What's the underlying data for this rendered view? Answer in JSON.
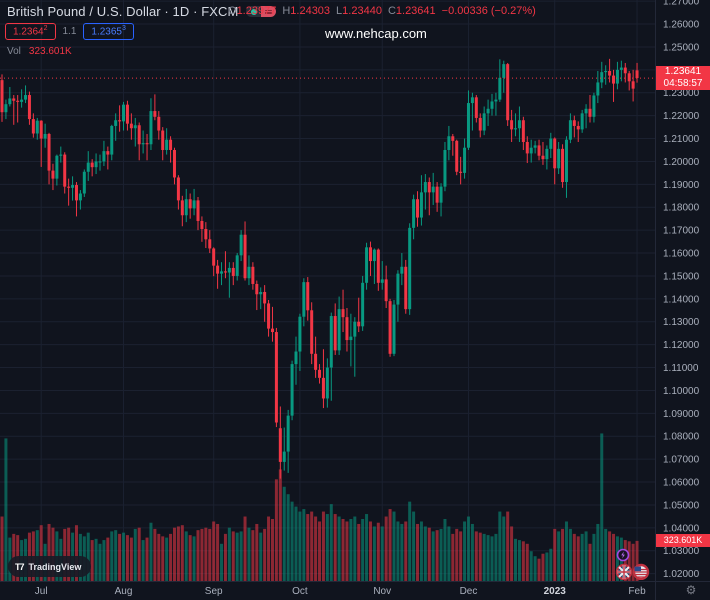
{
  "colors": {
    "background": "#10141e",
    "up": "#089981",
    "down": "#f23645",
    "grid": "#1b2130",
    "axis_text": "#aab0bd",
    "muted_text": "#868b98",
    "accent_blue": "#2962ff",
    "label_red": "#f23645",
    "purple": "#a34ae0"
  },
  "header": {
    "symbol_title": "British Pound / U.S. Dollar · 1D · FXCM",
    "market_status_icon": "market-open-dot",
    "ohlc": {
      "o_label": "O",
      "o": "1.23977",
      "h_label": "H",
      "h": "1.24303",
      "l_label": "L",
      "l": "1.23440",
      "c_label": "C",
      "c": "1.23641",
      "change": "−0.00336 (−0.27%)"
    },
    "sell_price": "1.2364",
    "sell_sup": "2",
    "spread": "1.1",
    "buy_price": "1.2365",
    "buy_sup": "3",
    "vol_label": "Vol",
    "vol_value": "323.601K",
    "watermark": "www.nehcap.com"
  },
  "price_scale": {
    "labels": [
      "1.27000",
      "1.26000",
      "1.25000",
      "1.24000",
      "1.23000",
      "1.22000",
      "1.21000",
      "1.20000",
      "1.19000",
      "1.18000",
      "1.17000",
      "1.16000",
      "1.15000",
      "1.14000",
      "1.13000",
      "1.12000",
      "1.11000",
      "1.10000",
      "1.09000",
      "1.08000",
      "1.07000",
      "1.06000",
      "1.05000",
      "1.04000",
      "1.03000",
      "1.02000"
    ],
    "last_price_label": "1.23641",
    "countdown": "04:58:57",
    "volume_label": "323.601K"
  },
  "footer": {
    "logo_text": "TradingView",
    "gear_icon": "settings-gear"
  },
  "chart_data": {
    "type": "candlestick",
    "title": "British Pound / U.S. Dollar",
    "interval": "1D",
    "exchange": "FXCM",
    "price_axis": {
      "min": 1.02,
      "max": 1.27,
      "step": 0.01
    },
    "x_ticks": [
      {
        "label": "Jul",
        "i": 10
      },
      {
        "label": "Aug",
        "i": 31
      },
      {
        "label": "Sep",
        "i": 54
      },
      {
        "label": "Oct",
        "i": 76
      },
      {
        "label": "Nov",
        "i": 97
      },
      {
        "label": "Dec",
        "i": 119
      },
      {
        "label": "2023",
        "i": 141
      },
      {
        "label": "Feb",
        "i": 162
      }
    ],
    "last": {
      "open": 1.23977,
      "high": 1.24303,
      "low": 1.2344,
      "close": 1.23641,
      "change": -0.00336,
      "change_pct": -0.27,
      "volume_k": 323.601
    },
    "volume_axis": {
      "max_k": 1250
    },
    "candles": [
      [
        1.2355,
        1.238,
        1.2173,
        1.2215,
        520
      ],
      [
        1.2215,
        1.227,
        1.2185,
        1.225,
        1150
      ],
      [
        1.225,
        1.2325,
        1.224,
        1.2275,
        350
      ],
      [
        1.2275,
        1.229,
        1.216,
        1.2265,
        380
      ],
      [
        1.2265,
        1.229,
        1.217,
        1.226,
        370
      ],
      [
        1.226,
        1.2315,
        1.2235,
        1.227,
        330
      ],
      [
        1.227,
        1.2332,
        1.2255,
        1.229,
        340
      ],
      [
        1.229,
        1.2305,
        1.216,
        1.2185,
        390
      ],
      [
        1.2185,
        1.221,
        1.2104,
        1.2122,
        400
      ],
      [
        1.2122,
        1.219,
        1.2095,
        1.2178,
        410
      ],
      [
        1.2178,
        1.218,
        1.1976,
        1.21,
        450
      ],
      [
        1.21,
        1.2165,
        1.206,
        1.212,
        300
      ],
      [
        1.212,
        1.2125,
        1.19,
        1.196,
        460
      ],
      [
        1.196,
        1.199,
        1.1875,
        1.1925,
        430
      ],
      [
        1.1925,
        1.203,
        1.1895,
        1.2025,
        400
      ],
      [
        1.2025,
        1.2065,
        1.1995,
        1.203,
        340
      ],
      [
        1.203,
        1.204,
        1.186,
        1.189,
        420
      ],
      [
        1.189,
        1.1925,
        1.1807,
        1.1885,
        430
      ],
      [
        1.1885,
        1.1935,
        1.1829,
        1.1897,
        390
      ],
      [
        1.1897,
        1.191,
        1.176,
        1.183,
        450
      ],
      [
        1.183,
        1.1875,
        1.179,
        1.186,
        380
      ],
      [
        1.186,
        1.1965,
        1.1845,
        1.1955,
        360
      ],
      [
        1.1955,
        1.2045,
        1.1915,
        1.1995,
        390
      ],
      [
        1.1995,
        1.201,
        1.1935,
        1.1975,
        330
      ],
      [
        1.1975,
        1.2035,
        1.1945,
        1.2,
        340
      ],
      [
        1.2,
        1.203,
        1.196,
        1.2,
        300
      ],
      [
        1.2,
        1.209,
        1.198,
        1.2045,
        330
      ],
      [
        1.2045,
        1.2065,
        1.1965,
        1.203,
        350
      ],
      [
        1.203,
        1.216,
        1.2005,
        1.2155,
        400
      ],
      [
        1.2155,
        1.221,
        1.209,
        1.218,
        410
      ],
      [
        1.218,
        1.2245,
        1.213,
        1.2175,
        380
      ],
      [
        1.2175,
        1.226,
        1.2135,
        1.2248,
        390
      ],
      [
        1.2248,
        1.2265,
        1.2135,
        1.2165,
        370
      ],
      [
        1.2165,
        1.221,
        1.2095,
        1.2145,
        350
      ],
      [
        1.2145,
        1.219,
        1.2065,
        1.2158,
        420
      ],
      [
        1.2158,
        1.217,
        1.2005,
        1.2075,
        430
      ],
      [
        1.2075,
        1.2135,
        1.2035,
        1.208,
        330
      ],
      [
        1.208,
        1.212,
        1.2005,
        1.2075,
        350
      ],
      [
        1.2075,
        1.2276,
        1.205,
        1.222,
        470
      ],
      [
        1.222,
        1.2293,
        1.218,
        1.2195,
        420
      ],
      [
        1.2195,
        1.222,
        1.2095,
        1.2135,
        380
      ],
      [
        1.2135,
        1.215,
        1.2005,
        1.205,
        360
      ],
      [
        1.205,
        1.2145,
        1.203,
        1.2095,
        350
      ],
      [
        1.2095,
        1.211,
        1.1995,
        1.205,
        380
      ],
      [
        1.205,
        1.206,
        1.19,
        1.193,
        430
      ],
      [
        1.193,
        1.194,
        1.179,
        1.183,
        440
      ],
      [
        1.183,
        1.185,
        1.1717,
        1.1765,
        450
      ],
      [
        1.1765,
        1.188,
        1.1735,
        1.1835,
        400
      ],
      [
        1.1835,
        1.186,
        1.175,
        1.1795,
        370
      ],
      [
        1.1795,
        1.188,
        1.1765,
        1.183,
        360
      ],
      [
        1.183,
        1.1845,
        1.17,
        1.174,
        410
      ],
      [
        1.174,
        1.176,
        1.1649,
        1.1705,
        420
      ],
      [
        1.1705,
        1.1735,
        1.1622,
        1.166,
        430
      ],
      [
        1.166,
        1.17,
        1.16,
        1.162,
        420
      ],
      [
        1.162,
        1.1625,
        1.1499,
        1.1545,
        480
      ],
      [
        1.1545,
        1.157,
        1.1444,
        1.151,
        460
      ],
      [
        1.151,
        1.156,
        1.146,
        1.152,
        300
      ],
      [
        1.152,
        1.1608,
        1.149,
        1.1515,
        380
      ],
      [
        1.1515,
        1.156,
        1.1405,
        1.1535,
        430
      ],
      [
        1.1535,
        1.156,
        1.146,
        1.15,
        400
      ],
      [
        1.15,
        1.16,
        1.148,
        1.159,
        390
      ],
      [
        1.159,
        1.17,
        1.1565,
        1.168,
        400
      ],
      [
        1.168,
        1.1738,
        1.148,
        1.149,
        520
      ],
      [
        1.149,
        1.159,
        1.146,
        1.154,
        430
      ],
      [
        1.154,
        1.156,
        1.144,
        1.1465,
        410
      ],
      [
        1.1465,
        1.148,
        1.1351,
        1.142,
        460
      ],
      [
        1.142,
        1.145,
        1.1355,
        1.143,
        390
      ],
      [
        1.143,
        1.146,
        1.13,
        1.138,
        420
      ],
      [
        1.138,
        1.1395,
        1.1235,
        1.127,
        520
      ],
      [
        1.127,
        1.1365,
        1.1213,
        1.1255,
        500
      ],
      [
        1.1255,
        1.1273,
        1.084,
        1.086,
        820
      ],
      [
        1.0835,
        1.093,
        1.0615,
        1.0688,
        900
      ],
      [
        1.0688,
        1.0838,
        1.065,
        1.0733,
        760
      ],
      [
        1.0733,
        1.0915,
        1.064,
        1.089,
        700
      ],
      [
        1.089,
        1.113,
        1.087,
        1.1115,
        640
      ],
      [
        1.1115,
        1.1235,
        1.1025,
        1.117,
        600
      ],
      [
        1.117,
        1.1335,
        1.1085,
        1.1322,
        560
      ],
      [
        1.1322,
        1.149,
        1.128,
        1.1473,
        580
      ],
      [
        1.1473,
        1.1495,
        1.1305,
        1.135,
        540
      ],
      [
        1.135,
        1.1385,
        1.1115,
        1.116,
        560
      ],
      [
        1.116,
        1.1235,
        1.1055,
        1.109,
        520
      ],
      [
        1.109,
        1.1115,
        1.103,
        1.1055,
        480
      ],
      [
        1.1055,
        1.118,
        1.0923,
        1.0965,
        560
      ],
      [
        1.0965,
        1.114,
        1.0925,
        1.11,
        540
      ],
      [
        1.11,
        1.134,
        1.0955,
        1.1325,
        620
      ],
      [
        1.1325,
        1.138,
        1.1155,
        1.1175,
        540
      ],
      [
        1.1175,
        1.141,
        1.1155,
        1.1355,
        520
      ],
      [
        1.1355,
        1.144,
        1.1255,
        1.132,
        500
      ],
      [
        1.132,
        1.136,
        1.117,
        1.122,
        480
      ],
      [
        1.122,
        1.1335,
        1.1105,
        1.1235,
        500
      ],
      [
        1.1235,
        1.132,
        1.106,
        1.13,
        520
      ],
      [
        1.13,
        1.1405,
        1.1255,
        1.128,
        460
      ],
      [
        1.128,
        1.15,
        1.126,
        1.147,
        500
      ],
      [
        1.147,
        1.1645,
        1.144,
        1.1625,
        540
      ],
      [
        1.1625,
        1.165,
        1.15,
        1.1565,
        480
      ],
      [
        1.1565,
        1.162,
        1.1465,
        1.1615,
        440
      ],
      [
        1.1615,
        1.162,
        1.1435,
        1.147,
        470
      ],
      [
        1.147,
        1.1565,
        1.144,
        1.1485,
        440
      ],
      [
        1.1485,
        1.1545,
        1.136,
        1.139,
        520
      ],
      [
        1.139,
        1.14,
        1.1147,
        1.116,
        580
      ],
      [
        1.116,
        1.1395,
        1.115,
        1.1375,
        560
      ],
      [
        1.1375,
        1.1525,
        1.13,
        1.151,
        480
      ],
      [
        1.151,
        1.16,
        1.146,
        1.154,
        460
      ],
      [
        1.154,
        1.157,
        1.1335,
        1.1355,
        480
      ],
      [
        1.1355,
        1.173,
        1.133,
        1.171,
        640
      ],
      [
        1.171,
        1.1855,
        1.166,
        1.1835,
        560
      ],
      [
        1.1835,
        1.187,
        1.1715,
        1.1755,
        460
      ],
      [
        1.1755,
        1.194,
        1.172,
        1.1865,
        480
      ],
      [
        1.1865,
        1.1945,
        1.179,
        1.191,
        440
      ],
      [
        1.191,
        1.193,
        1.1765,
        1.1865,
        430
      ],
      [
        1.1865,
        1.195,
        1.181,
        1.189,
        400
      ],
      [
        1.189,
        1.191,
        1.178,
        1.182,
        410
      ],
      [
        1.182,
        1.1905,
        1.176,
        1.189,
        420
      ],
      [
        1.189,
        1.2085,
        1.187,
        1.205,
        500
      ],
      [
        1.205,
        1.2155,
        1.2005,
        1.211,
        440
      ],
      [
        1.211,
        1.212,
        1.2025,
        1.209,
        380
      ],
      [
        1.209,
        1.2095,
        1.194,
        1.1955,
        420
      ],
      [
        1.1955,
        1.202,
        1.19,
        1.195,
        400
      ],
      [
        1.195,
        1.21,
        1.1925,
        1.206,
        480
      ],
      [
        1.206,
        1.231,
        1.205,
        1.2255,
        520
      ],
      [
        1.2255,
        1.23,
        1.2135,
        1.228,
        460
      ],
      [
        1.228,
        1.229,
        1.217,
        1.219,
        400
      ],
      [
        1.219,
        1.221,
        1.2105,
        1.2135,
        390
      ],
      [
        1.2135,
        1.224,
        1.2115,
        1.221,
        380
      ],
      [
        1.221,
        1.227,
        1.2155,
        1.223,
        370
      ],
      [
        1.223,
        1.2295,
        1.22,
        1.2262,
        360
      ],
      [
        1.2262,
        1.23,
        1.22,
        1.227,
        380
      ],
      [
        1.227,
        1.2446,
        1.226,
        1.2365,
        560
      ],
      [
        1.2365,
        1.244,
        1.23,
        1.2425,
        520
      ],
      [
        1.2425,
        1.243,
        1.2155,
        1.218,
        560
      ],
      [
        1.218,
        1.2225,
        1.2085,
        1.214,
        440
      ],
      [
        1.214,
        1.221,
        1.211,
        1.2145,
        340
      ],
      [
        1.2145,
        1.224,
        1.2085,
        1.218,
        330
      ],
      [
        1.218,
        1.2195,
        1.205,
        1.2085,
        320
      ],
      [
        1.2085,
        1.211,
        1.1993,
        1.2035,
        300
      ],
      [
        1.2035,
        1.2095,
        1.1995,
        1.206,
        240
      ],
      [
        1.206,
        1.209,
        1.2035,
        1.207,
        200
      ],
      [
        1.207,
        1.2095,
        1.2005,
        1.2025,
        180
      ],
      [
        1.2025,
        1.2085,
        1.1985,
        1.201,
        220
      ],
      [
        1.201,
        1.207,
        1.1965,
        1.2055,
        230
      ],
      [
        1.2055,
        1.2125,
        1.2015,
        1.21,
        260
      ],
      [
        1.21,
        1.2105,
        1.19,
        1.197,
        420
      ],
      [
        1.197,
        1.2085,
        1.1945,
        1.2055,
        400
      ],
      [
        1.2055,
        1.2075,
        1.1885,
        1.191,
        420
      ],
      [
        1.191,
        1.211,
        1.1841,
        1.2095,
        480
      ],
      [
        1.2095,
        1.221,
        1.208,
        1.218,
        420
      ],
      [
        1.218,
        1.22,
        1.2105,
        1.2155,
        380
      ],
      [
        1.2155,
        1.2175,
        1.2085,
        1.214,
        360
      ],
      [
        1.214,
        1.2225,
        1.2125,
        1.221,
        380
      ],
      [
        1.221,
        1.225,
        1.2145,
        1.223,
        400
      ],
      [
        1.223,
        1.229,
        1.217,
        1.2195,
        300
      ],
      [
        1.2195,
        1.23,
        1.217,
        1.2288,
        380
      ],
      [
        1.2288,
        1.2395,
        1.2255,
        1.2345,
        460
      ],
      [
        1.2345,
        1.2435,
        1.232,
        1.239,
        1190
      ],
      [
        1.239,
        1.242,
        1.2335,
        1.2395,
        420
      ],
      [
        1.2395,
        1.2448,
        1.2345,
        1.2375,
        400
      ],
      [
        1.2375,
        1.24,
        1.226,
        1.234,
        380
      ],
      [
        1.234,
        1.2435,
        1.2315,
        1.24,
        360
      ],
      [
        1.24,
        1.244,
        1.235,
        1.241,
        350
      ],
      [
        1.241,
        1.243,
        1.2345,
        1.2385,
        330
      ],
      [
        1.2385,
        1.2395,
        1.231,
        1.235,
        320
      ],
      [
        1.235,
        1.24,
        1.2262,
        1.2318,
        300
      ],
      [
        1.23977,
        1.24303,
        1.2344,
        1.23641,
        323.601
      ]
    ]
  }
}
